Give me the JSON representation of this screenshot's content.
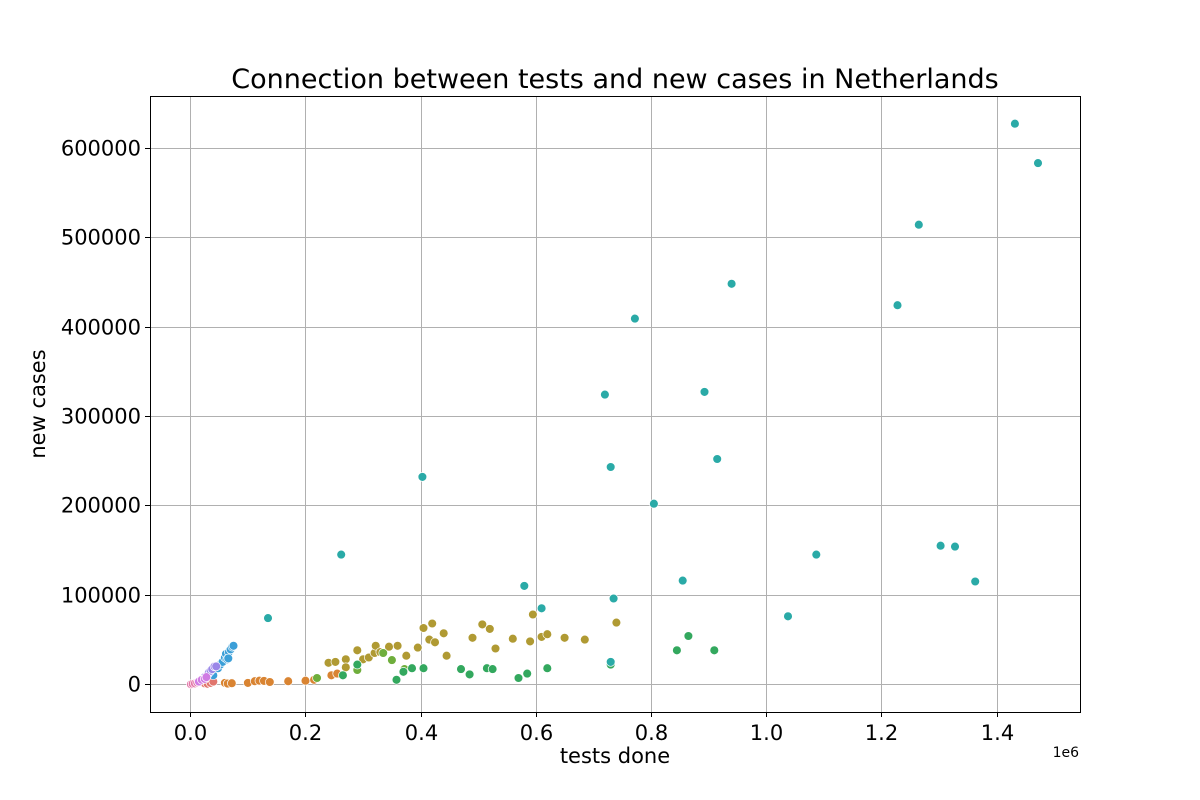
{
  "chart_data": {
    "type": "scatter",
    "title": "Connection between tests and new cases in Netherlands",
    "xlabel": "tests done",
    "ylabel": "new cases",
    "x_offset_label": "1e6",
    "xlim": [
      -70000,
      1545000
    ],
    "ylim": [
      -31000,
      658000
    ],
    "x_ticks": [
      {
        "value": 0,
        "label": "0.0"
      },
      {
        "value": 200000,
        "label": "0.2"
      },
      {
        "value": 400000,
        "label": "0.4"
      },
      {
        "value": 600000,
        "label": "0.6"
      },
      {
        "value": 800000,
        "label": "0.8"
      },
      {
        "value": 1000000,
        "label": "1.0"
      },
      {
        "value": 1200000,
        "label": "1.2"
      },
      {
        "value": 1400000,
        "label": "1.4"
      }
    ],
    "y_ticks": [
      {
        "value": 0,
        "label": "0"
      },
      {
        "value": 100000,
        "label": "100000"
      },
      {
        "value": 200000,
        "label": "200000"
      },
      {
        "value": 300000,
        "label": "300000"
      },
      {
        "value": 400000,
        "label": "400000"
      },
      {
        "value": 500000,
        "label": "500000"
      },
      {
        "value": 600000,
        "label": "600000"
      }
    ],
    "grid": true,
    "legend": "none",
    "series": [
      {
        "color": "#e377a8",
        "points": [
          [
            1000,
            0
          ],
          [
            4000,
            500
          ],
          [
            8000,
            1000
          ],
          [
            12000,
            2000
          ],
          [
            15000,
            3000
          ],
          [
            18000,
            4000
          ],
          [
            20000,
            5000
          ],
          [
            23000,
            6000
          ]
        ]
      },
      {
        "color": "#e1766d",
        "points": [
          [
            25000,
            1000
          ],
          [
            30000,
            500
          ],
          [
            35000,
            1500
          ],
          [
            40000,
            3000
          ]
        ]
      },
      {
        "color": "#d98432",
        "points": [
          [
            60000,
            1500
          ],
          [
            65000,
            800
          ],
          [
            72000,
            1200
          ],
          [
            100000,
            1500
          ],
          [
            112000,
            3500
          ],
          [
            120000,
            4000
          ],
          [
            128000,
            3800
          ],
          [
            138000,
            2500
          ],
          [
            170000,
            3500
          ],
          [
            200000,
            4000
          ],
          [
            215000,
            5000
          ],
          [
            245000,
            10000
          ],
          [
            255000,
            12000
          ]
        ]
      },
      {
        "color": "#b09a33",
        "points": [
          [
            240000,
            24000
          ],
          [
            252000,
            25000
          ],
          [
            270000,
            28000
          ],
          [
            290000,
            38000
          ],
          [
            300000,
            28000
          ],
          [
            310000,
            30000
          ],
          [
            320000,
            35000
          ],
          [
            322000,
            43000
          ],
          [
            330000,
            36000
          ],
          [
            345000,
            42000
          ],
          [
            360000,
            43000
          ],
          [
            375000,
            32000
          ],
          [
            395000,
            41000
          ],
          [
            405000,
            63000
          ],
          [
            415000,
            50000
          ],
          [
            420000,
            68000
          ],
          [
            425000,
            47000
          ],
          [
            440000,
            57000
          ],
          [
            445000,
            32000
          ],
          [
            490000,
            52000
          ],
          [
            507000,
            67000
          ],
          [
            520000,
            62000
          ],
          [
            530000,
            40000
          ],
          [
            560000,
            51000
          ],
          [
            590000,
            48000
          ],
          [
            595000,
            78000
          ],
          [
            610000,
            53000
          ],
          [
            620000,
            56000
          ],
          [
            650000,
            52000
          ],
          [
            685000,
            50000
          ],
          [
            740000,
            69000
          ],
          [
            270000,
            19000
          ]
        ]
      },
      {
        "color": "#6fae3c",
        "points": [
          [
            220000,
            7000
          ],
          [
            290000,
            16000
          ],
          [
            335000,
            35000
          ],
          [
            350000,
            27000
          ],
          [
            372000,
            17000
          ]
        ]
      },
      {
        "color": "#33a85e",
        "points": [
          [
            265000,
            10000
          ],
          [
            290000,
            22000
          ],
          [
            358000,
            5000
          ],
          [
            370000,
            14000
          ],
          [
            385000,
            18000
          ],
          [
            405000,
            18000
          ],
          [
            470000,
            17000
          ],
          [
            485000,
            11000
          ],
          [
            515000,
            18000
          ],
          [
            525000,
            17000
          ],
          [
            570000,
            7000
          ],
          [
            585000,
            12000
          ],
          [
            620000,
            18000
          ],
          [
            730000,
            22000
          ],
          [
            845000,
            38000
          ],
          [
            865000,
            54000
          ],
          [
            910000,
            38000
          ]
        ]
      },
      {
        "color": "#2aaaa7",
        "points": [
          [
            135000,
            74000
          ],
          [
            262000,
            145000
          ],
          [
            403000,
            232000
          ],
          [
            580000,
            110000
          ],
          [
            610000,
            85000
          ],
          [
            720000,
            324000
          ],
          [
            730000,
            243000
          ],
          [
            730000,
            25000
          ],
          [
            735000,
            96000
          ],
          [
            772000,
            409000
          ],
          [
            805000,
            202000
          ],
          [
            855000,
            116000
          ],
          [
            893000,
            327000
          ],
          [
            915000,
            252000
          ],
          [
            940000,
            448000
          ],
          [
            1038000,
            76000
          ],
          [
            1087000,
            145000
          ],
          [
            1228000,
            424000
          ],
          [
            1265000,
            514000
          ],
          [
            1303000,
            155000
          ],
          [
            1328000,
            154000
          ],
          [
            1363000,
            115000
          ],
          [
            1432000,
            627000
          ],
          [
            1472000,
            583000
          ]
        ]
      },
      {
        "color": "#3b9fd8",
        "points": [
          [
            40000,
            10000
          ],
          [
            48000,
            18000
          ],
          [
            52000,
            22000
          ],
          [
            56000,
            25000
          ],
          [
            60000,
            30000
          ],
          [
            62000,
            34000
          ],
          [
            64000,
            28000
          ],
          [
            67000,
            36000
          ],
          [
            70000,
            39000
          ],
          [
            73000,
            42000
          ],
          [
            75000,
            43000
          ],
          [
            66000,
            29000
          ]
        ]
      },
      {
        "color": "#9b87e8",
        "points": [
          [
            25000,
            8000
          ],
          [
            30000,
            11000
          ],
          [
            32000,
            13000
          ],
          [
            35000,
            15000
          ],
          [
            38000,
            17000
          ],
          [
            42000,
            20000
          ],
          [
            45000,
            20000
          ]
        ]
      },
      {
        "color": "#d07be3",
        "points": [
          [
            15000,
            3000
          ],
          [
            20000,
            5000
          ],
          [
            25000,
            6000
          ],
          [
            28000,
            8000
          ]
        ]
      }
    ]
  }
}
